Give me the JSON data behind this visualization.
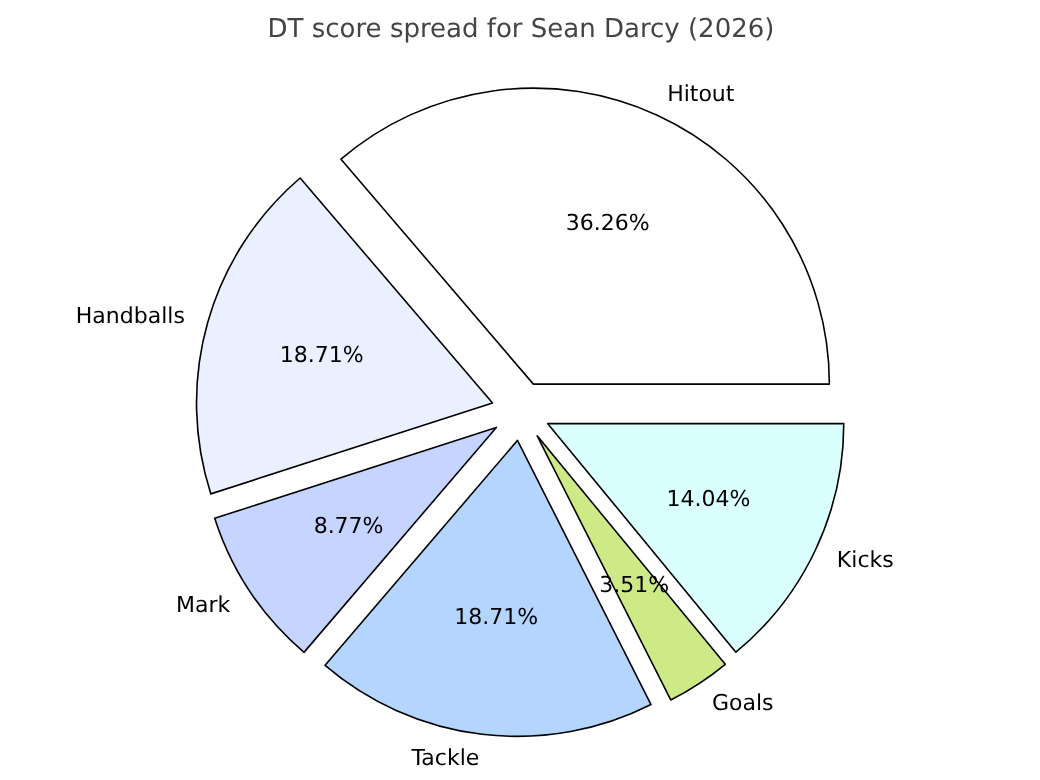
{
  "chart_data": {
    "type": "pie",
    "title": "DT score spread for Sean Darcy (2026)",
    "categories": [
      "Hitout",
      "Handballs",
      "Mark",
      "Tackle",
      "Goals",
      "Kicks"
    ],
    "values": [
      36.26,
      18.71,
      8.77,
      18.71,
      3.51,
      14.04
    ],
    "value_labels": [
      "36.26%",
      "18.71%",
      "8.77%",
      "18.71%",
      "3.51%",
      "14.04%"
    ],
    "colors": [
      "#ffffff",
      "#eaf0ff",
      "#c6d5ff",
      "#b3d5ff",
      "#ceea86",
      "#d9ffff"
    ]
  }
}
